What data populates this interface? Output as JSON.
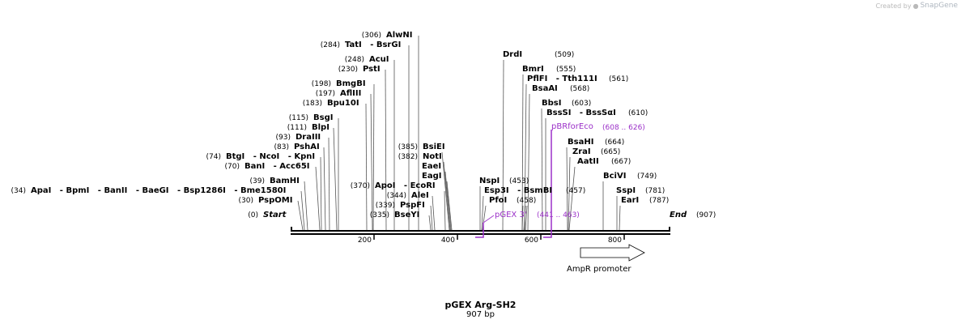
{
  "watermark": {
    "prefix": "Created by",
    "brand": "SnapGene"
  },
  "title": "pGEX Arg-SH2",
  "length_label": "907 bp",
  "ticks": [
    "200",
    "400",
    "600",
    "800"
  ],
  "colors": {
    "feature": "#9b30c8",
    "line": "#000000",
    "leader": "#555555"
  },
  "ends": {
    "start": {
      "label": "Start",
      "coord": "(0)"
    },
    "end": {
      "label": "End",
      "coord": "(907)"
    }
  },
  "sites_left": [
    {
      "coord": "(34)",
      "names": "ApaI   - BpmI   - BanII   - BaeGI   - Bsp1286I   - Bme1580I"
    },
    {
      "coord": "(30)",
      "names": "PspOMI"
    },
    {
      "coord": "(39)",
      "names": "BamHI"
    },
    {
      "coord": "(70)",
      "names": "BanI   - Acc65I"
    },
    {
      "coord": "(74)",
      "names": "BtgI   - NcoI   - KpnI"
    },
    {
      "coord": "(83)",
      "names": "PshAI"
    },
    {
      "coord": "(93)",
      "names": "DraIII"
    },
    {
      "coord": "(111)",
      "names": "BlpI"
    },
    {
      "coord": "(115)",
      "names": "BsgI"
    },
    {
      "coord": "(183)",
      "names": "Bpu10I"
    },
    {
      "coord": "(197)",
      "names": "AflIII"
    },
    {
      "coord": "(198)",
      "names": "BmgBI"
    },
    {
      "coord": "(230)",
      "names": "PstI"
    },
    {
      "coord": "(248)",
      "names": "AcuI"
    },
    {
      "coord": "(284)",
      "names": "TatI   - BsrGI"
    },
    {
      "coord": "(306)",
      "names": "AlwNI"
    },
    {
      "coord": "(370)",
      "names": "ApoI   - EcoRI"
    },
    {
      "coord": "(344)",
      "names": "AleI"
    },
    {
      "coord": "(339)",
      "names": "PspFI"
    },
    {
      "coord": "(335)",
      "names": "BseYI"
    },
    {
      "coord": "(385)",
      "names": "BsiEI"
    },
    {
      "coord": "(382)",
      "names": "NotI"
    },
    {
      "coord": "",
      "names": "EaeI"
    },
    {
      "coord": "",
      "names": "EagI"
    }
  ],
  "sites_right": [
    {
      "coord": "(509)",
      "names": "DrdI"
    },
    {
      "coord": "(555)",
      "names": "BmrI"
    },
    {
      "coord": "(561)",
      "names": "PflFI   - Tth111I"
    },
    {
      "coord": "(568)",
      "names": "BsaAI"
    },
    {
      "coord": "(603)",
      "names": "BbsI"
    },
    {
      "coord": "(610)",
      "names": "BssSI   - BssSαI"
    },
    {
      "coord": "(453)",
      "names": "NspI"
    },
    {
      "coord": "(457)",
      "names": "Esp3I   - BsmBI"
    },
    {
      "coord": "(458)",
      "names": "PfoI"
    },
    {
      "coord": "(664)",
      "names": "BsaHI"
    },
    {
      "coord": "(665)",
      "names": "ZraI"
    },
    {
      "coord": "(667)",
      "names": "AatII"
    },
    {
      "coord": "(749)",
      "names": "BciVI"
    },
    {
      "coord": "(781)",
      "names": "SspI"
    },
    {
      "coord": "(787)",
      "names": "EarI"
    }
  ],
  "features": [
    {
      "name": "pGEX 3'",
      "coord": "(441 .. 463)"
    },
    {
      "name": "pBRforEco",
      "coord": "(608 .. 626)"
    },
    {
      "name": "AmpR promoter",
      "coord": ""
    }
  ]
}
